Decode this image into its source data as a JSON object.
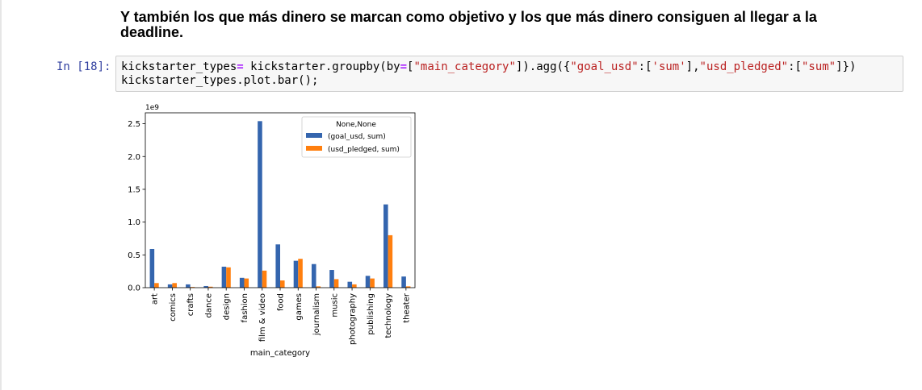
{
  "heading": "Y también los que más dinero se marcan como objetivo y los que más dinero consiguen al llegar a la deadline.",
  "cell": {
    "prompt": "In [18]:",
    "line1": {
      "p1": "kickstarter_types",
      "op1": "=",
      "p2": " kickstarter.groupby(by",
      "op2": "=",
      "p3": "[",
      "s1": "\"main_category\"",
      "p4": "]).agg({",
      "s2": "\"goal_usd\"",
      "p5": ":[",
      "s3": "'sum'",
      "p6": "],",
      "s4": "\"usd_pledged\"",
      "p7": ":[",
      "s5": "\"sum\"",
      "p8": "]})"
    },
    "line2": "kickstarter_types.plot.bar();"
  },
  "chart_data": {
    "type": "bar",
    "categories": [
      "art",
      "comics",
      "crafts",
      "dance",
      "design",
      "fashion",
      "film & video",
      "food",
      "games",
      "journalism",
      "music",
      "photography",
      "publishing",
      "technology",
      "theater"
    ],
    "series": [
      {
        "name": "(goal_usd, sum)",
        "color": "#3465ae",
        "values": [
          0.59,
          0.05,
          0.05,
          0.025,
          0.32,
          0.15,
          2.54,
          0.66,
          0.41,
          0.36,
          0.27,
          0.09,
          0.18,
          1.27,
          0.17
        ]
      },
      {
        "name": "(usd_pledged, sum)",
        "color": "#ff7f0e",
        "values": [
          0.07,
          0.07,
          0.01,
          0.015,
          0.31,
          0.14,
          0.26,
          0.11,
          0.44,
          0.02,
          0.13,
          0.05,
          0.14,
          0.8,
          0.02
        ]
      }
    ],
    "legend_title": "None,None",
    "legend_position": "top-right",
    "offset_text": "1e9",
    "xlabel": "main_category",
    "ylabel": "",
    "ylim": [
      0,
      2.667
    ],
    "yticks": [
      0.0,
      0.5,
      1.0,
      1.5,
      2.0,
      2.5
    ],
    "ytick_labels": [
      "0.0",
      "0.5",
      "1.0",
      "1.5",
      "2.0",
      "2.5"
    ],
    "grid": false
  }
}
